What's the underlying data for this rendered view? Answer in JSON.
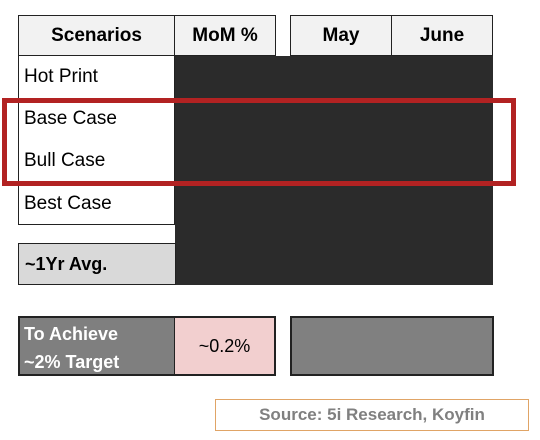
{
  "table": {
    "headers": [
      "Scenarios",
      "MoM %"
    ],
    "months": [
      "May",
      "June"
    ],
    "scenarios": [
      "Hot Print",
      "Base Case",
      "Bull Case",
      "Best Case"
    ]
  },
  "avg": {
    "label": "~1Yr Avg."
  },
  "achieve": {
    "label": "To Achieve\n~2% Target",
    "line1": "To Achieve",
    "line2": "~2% Target",
    "value": "~0.2%"
  },
  "source": "Source: 5i Research, Koyfin",
  "colors": {
    "header_bg": "#f2f2f2",
    "redaction": "#2b2b2b",
    "highlight": "#b22222",
    "avg_bg": "#d9d9d9",
    "achieve_bg": "#7f7f7f",
    "value_bg": "#f2cfcf",
    "source_border": "#e0a466"
  },
  "highlighted_rows": [
    "Base Case",
    "Bull Case"
  ]
}
